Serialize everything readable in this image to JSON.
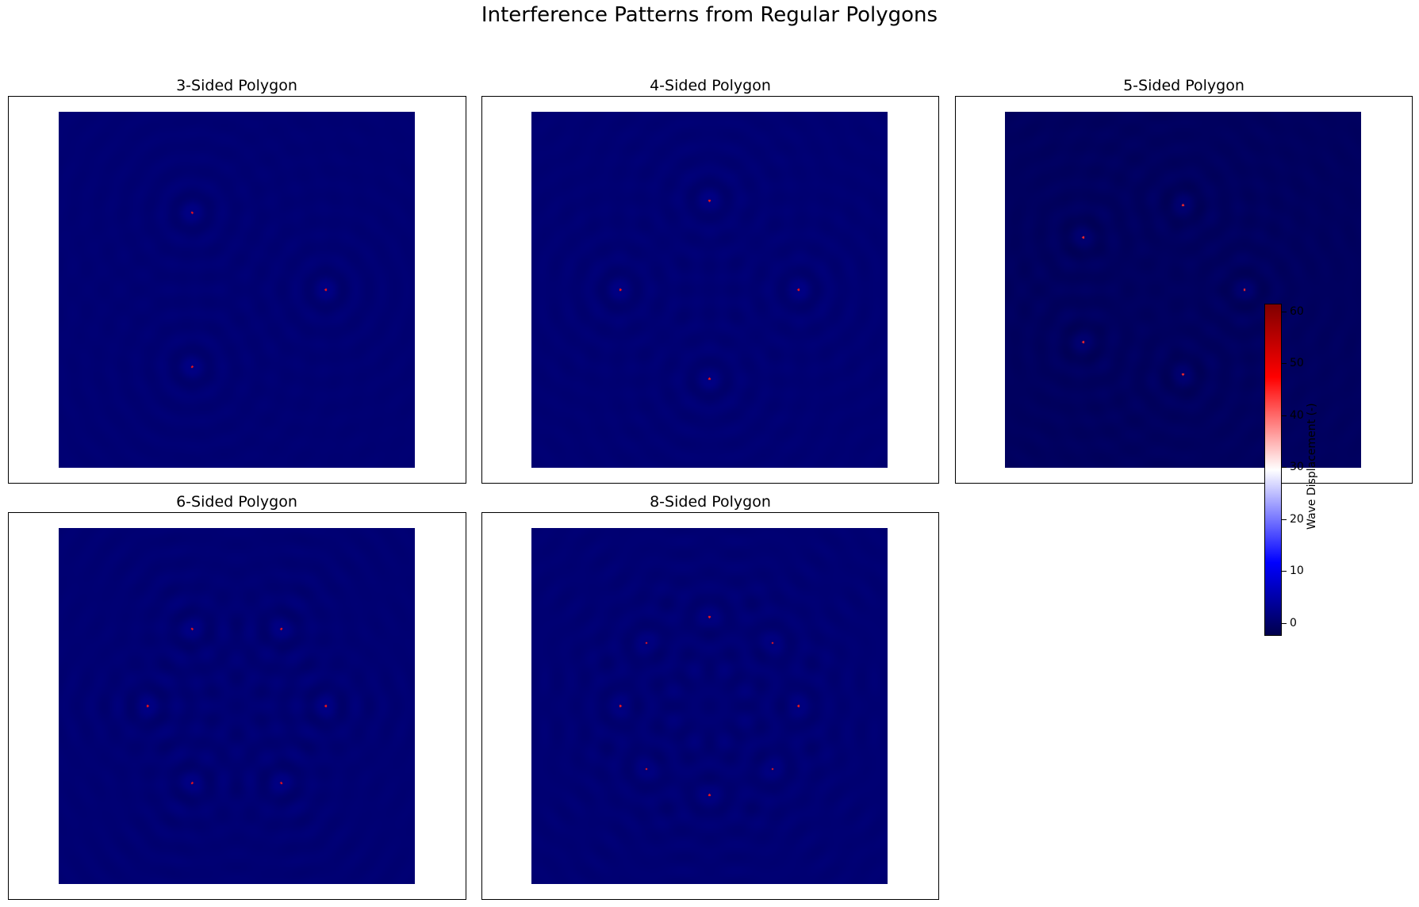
{
  "figure": {
    "title": "Interference Patterns from Regular Polygons"
  },
  "chart_data": [
    {
      "type": "heatmap",
      "title": "3-Sided Polygon",
      "sides": 3,
      "sources": [
        [
          -0.5,
          0.866
        ],
        [
          1.0,
          0.0
        ],
        [
          -0.5,
          -0.866
        ]
      ],
      "source_radius": 1,
      "xlim": [
        -2,
        2
      ],
      "ylim": [
        -2,
        2
      ],
      "axes_ticks": "none",
      "background_level": 0.5
    },
    {
      "type": "heatmap",
      "title": "4-Sided Polygon",
      "sides": 4,
      "sources": [
        [
          0.0,
          1.0
        ],
        [
          1.0,
          0.0
        ],
        [
          0.0,
          -1.0
        ],
        [
          -1.0,
          0.0
        ]
      ],
      "source_radius": 1,
      "xlim": [
        -2,
        2
      ],
      "ylim": [
        -2,
        2
      ],
      "axes_ticks": "none",
      "background_level": 0.5
    },
    {
      "type": "heatmap",
      "title": "5-Sided Polygon",
      "sides": 5,
      "sources": [
        [
          0.0,
          0.951
        ],
        [
          0.69,
          0.0
        ],
        [
          0.0,
          -0.951
        ],
        [
          -1.12,
          -0.588
        ],
        [
          -1.12,
          0.588
        ]
      ],
      "source_radius": 1,
      "xlim": [
        -2,
        2
      ],
      "ylim": [
        -2,
        2
      ],
      "axes_ticks": "none",
      "background_level": -1
    },
    {
      "type": "heatmap",
      "title": "6-Sided Polygon",
      "sides": 6,
      "sources": [
        [
          -0.5,
          0.866
        ],
        [
          0.5,
          0.866
        ],
        [
          1.0,
          0.0
        ],
        [
          0.5,
          -0.866
        ],
        [
          -0.5,
          -0.866
        ],
        [
          -1.0,
          0.0
        ]
      ],
      "source_radius": 1,
      "xlim": [
        -2,
        2
      ],
      "ylim": [
        -2,
        2
      ],
      "axes_ticks": "none",
      "background_level": 0.5
    },
    {
      "type": "heatmap",
      "title": "8-Sided Polygon",
      "sides": 8,
      "sources": [
        [
          0.0,
          1.0
        ],
        [
          0.707,
          0.707
        ],
        [
          1.0,
          0.0
        ],
        [
          0.707,
          -0.707
        ],
        [
          0.0,
          -1.0
        ],
        [
          -0.707,
          -0.707
        ],
        [
          -1.0,
          0.0
        ],
        [
          -0.707,
          0.707
        ]
      ],
      "source_radius": 1,
      "xlim": [
        -2,
        2
      ],
      "ylim": [
        -2,
        2
      ],
      "axes_ticks": "none",
      "background_level": 0.5
    }
  ],
  "colorbar": {
    "label": "Wave Displacement (-)",
    "range": [
      -2.5,
      61.5
    ],
    "ticks": [
      0,
      10,
      20,
      30,
      40,
      50,
      60
    ],
    "colormap": "seismic",
    "colors": [
      "#00004c",
      "#0000ff",
      "#ffffff",
      "#ff0000",
      "#800000"
    ]
  }
}
